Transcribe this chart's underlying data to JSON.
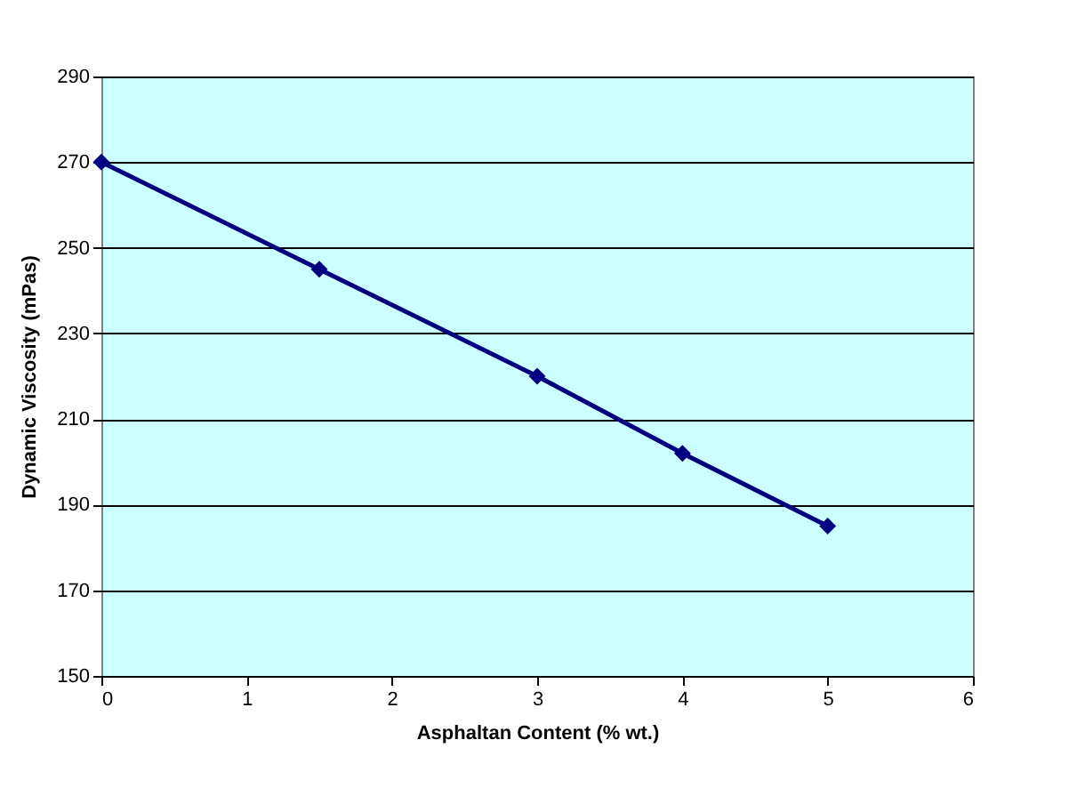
{
  "chart_data": {
    "type": "line",
    "xlabel": "Asphaltan Content (% wt.)",
    "ylabel": "Dynamic Viscosity (mPas)",
    "x": [
      0,
      1.5,
      3,
      4,
      5
    ],
    "series": [
      {
        "color": "#000080",
        "values": [
          270,
          245,
          220,
          202,
          185
        ]
      }
    ],
    "xlim": [
      0,
      6
    ],
    "xticks": [
      0,
      1,
      2,
      3,
      4,
      5,
      6
    ],
    "ylim": [
      150,
      290
    ],
    "yticks": [
      150,
      170,
      190,
      210,
      230,
      250,
      270,
      290
    ],
    "grid": "y",
    "marker": "diamond",
    "line_style": "solid"
  }
}
